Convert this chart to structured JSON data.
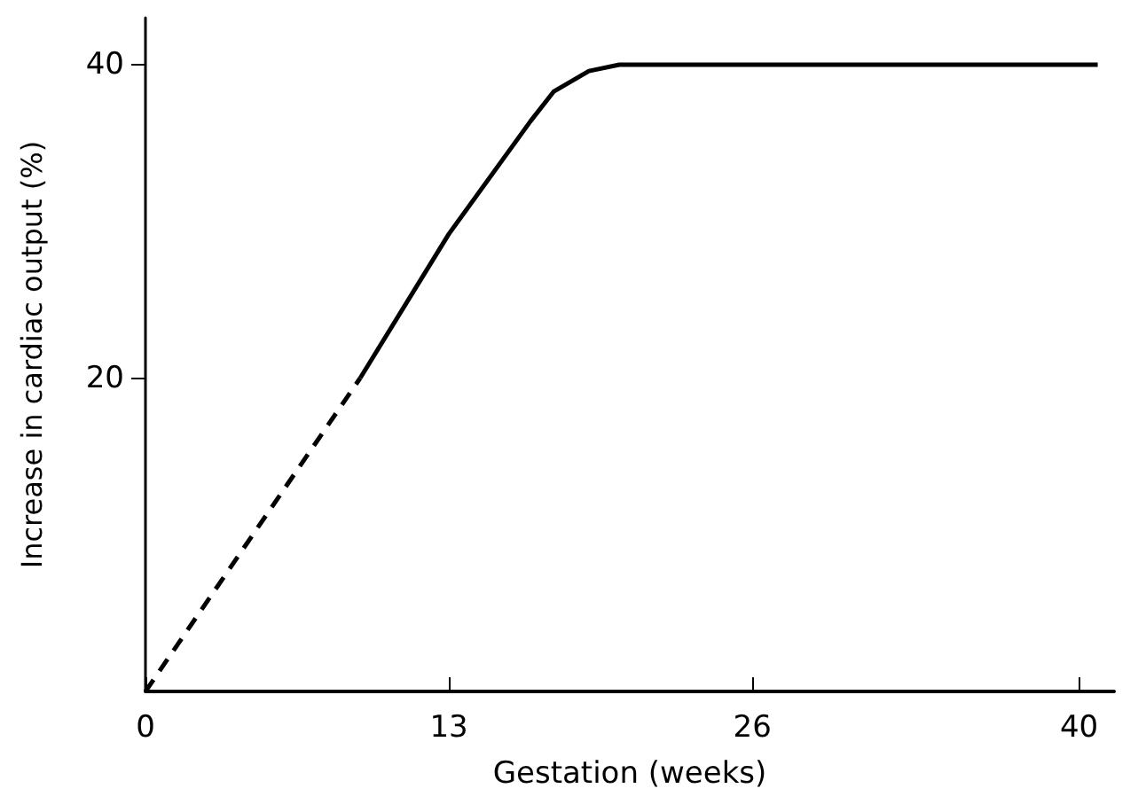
{
  "chart_data": {
    "type": "line",
    "xlabel": "Gestation (weeks)",
    "ylabel": "Increase in cardiac output (%)",
    "xlim": [
      0,
      41.5
    ],
    "ylim": [
      0,
      43
    ],
    "xticks": [
      0,
      13,
      26,
      40
    ],
    "yticks": [
      20,
      40
    ],
    "grid": false,
    "marker": "none",
    "series": [
      {
        "color": "#000000",
        "line_style": "dashed",
        "x": [
          0,
          9.2
        ],
        "values": [
          0,
          20
        ]
      },
      {
        "color": "#000000",
        "line_style": "solid",
        "x": [
          9.2,
          13,
          16.5,
          17.5,
          19,
          20.3,
          40.8
        ],
        "values": [
          20,
          29.2,
          36.4,
          38.3,
          39.6,
          40,
          40
        ]
      }
    ]
  }
}
